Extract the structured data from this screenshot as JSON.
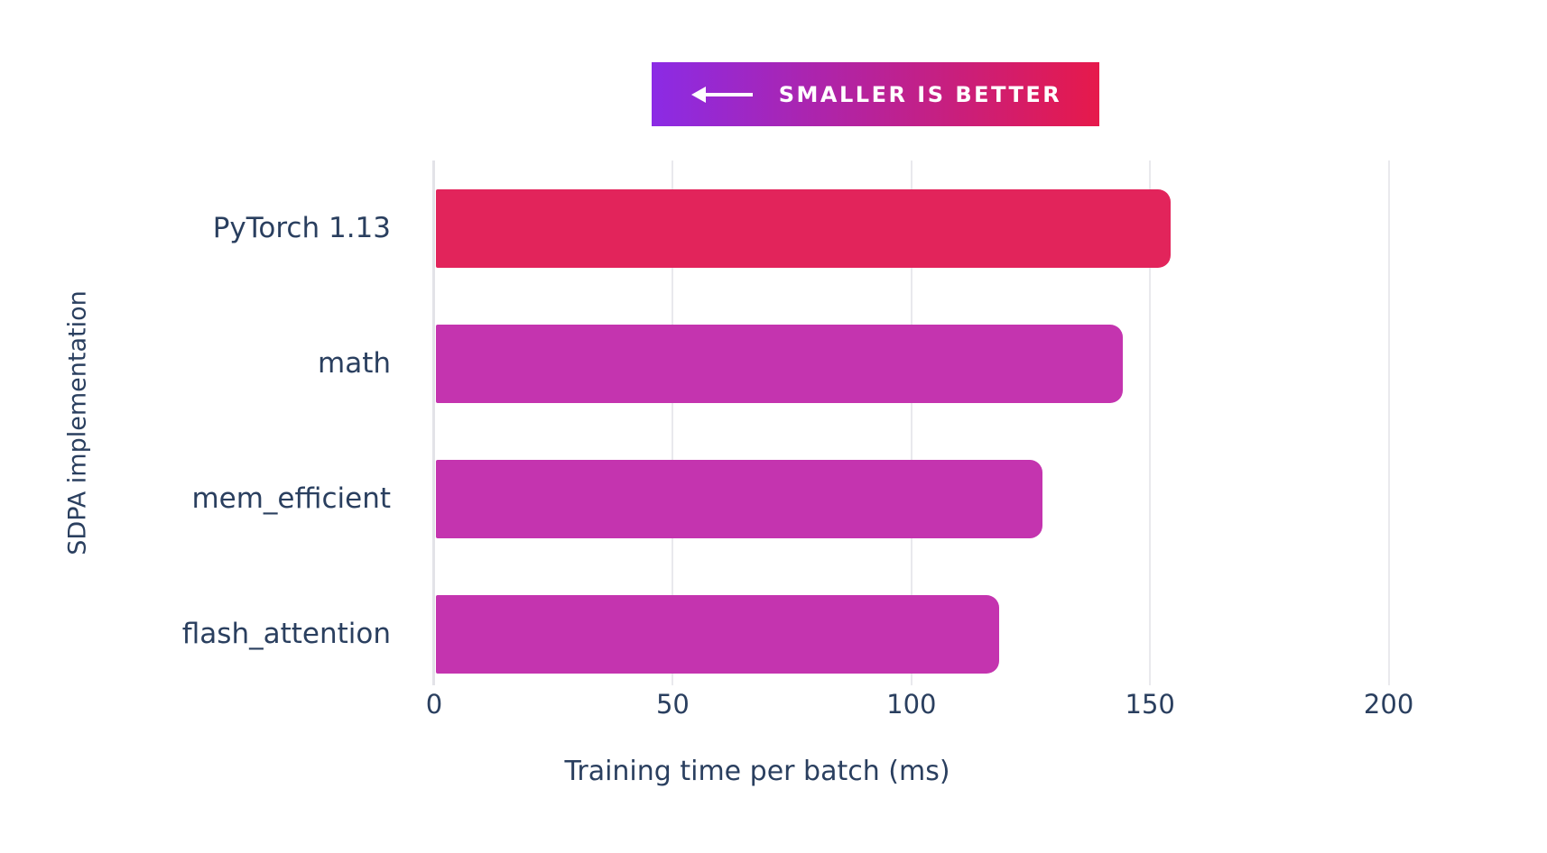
{
  "banner": {
    "label": "SMALLER IS BETTER",
    "arrow_direction": "left",
    "gradient_from": "#8B2BE5",
    "gradient_to": "#E6194B",
    "text_color": "#FFFFFF"
  },
  "chart_data": {
    "type": "bar",
    "orientation": "horizontal",
    "categories": [
      "PyTorch 1.13",
      "math",
      "mem_efficient",
      "flash_attention"
    ],
    "values": [
      154,
      144,
      127,
      118
    ],
    "value_unit": "ms",
    "bar_colors": [
      "#E2245B",
      "#C434AF",
      "#C434AF",
      "#C434AF"
    ],
    "xlabel": "Training time per batch (ms)",
    "ylabel": "SDPA implementation",
    "xlim": [
      0,
      213.5
    ],
    "xticks": [
      0,
      50,
      100,
      150,
      200
    ],
    "grid": true,
    "legend": "none",
    "gridline_color": "#E9E9ED",
    "zeroline_color": "#E3E3E8",
    "text_color": "#2A3F5F",
    "background_color": "#FFFFFF"
  }
}
